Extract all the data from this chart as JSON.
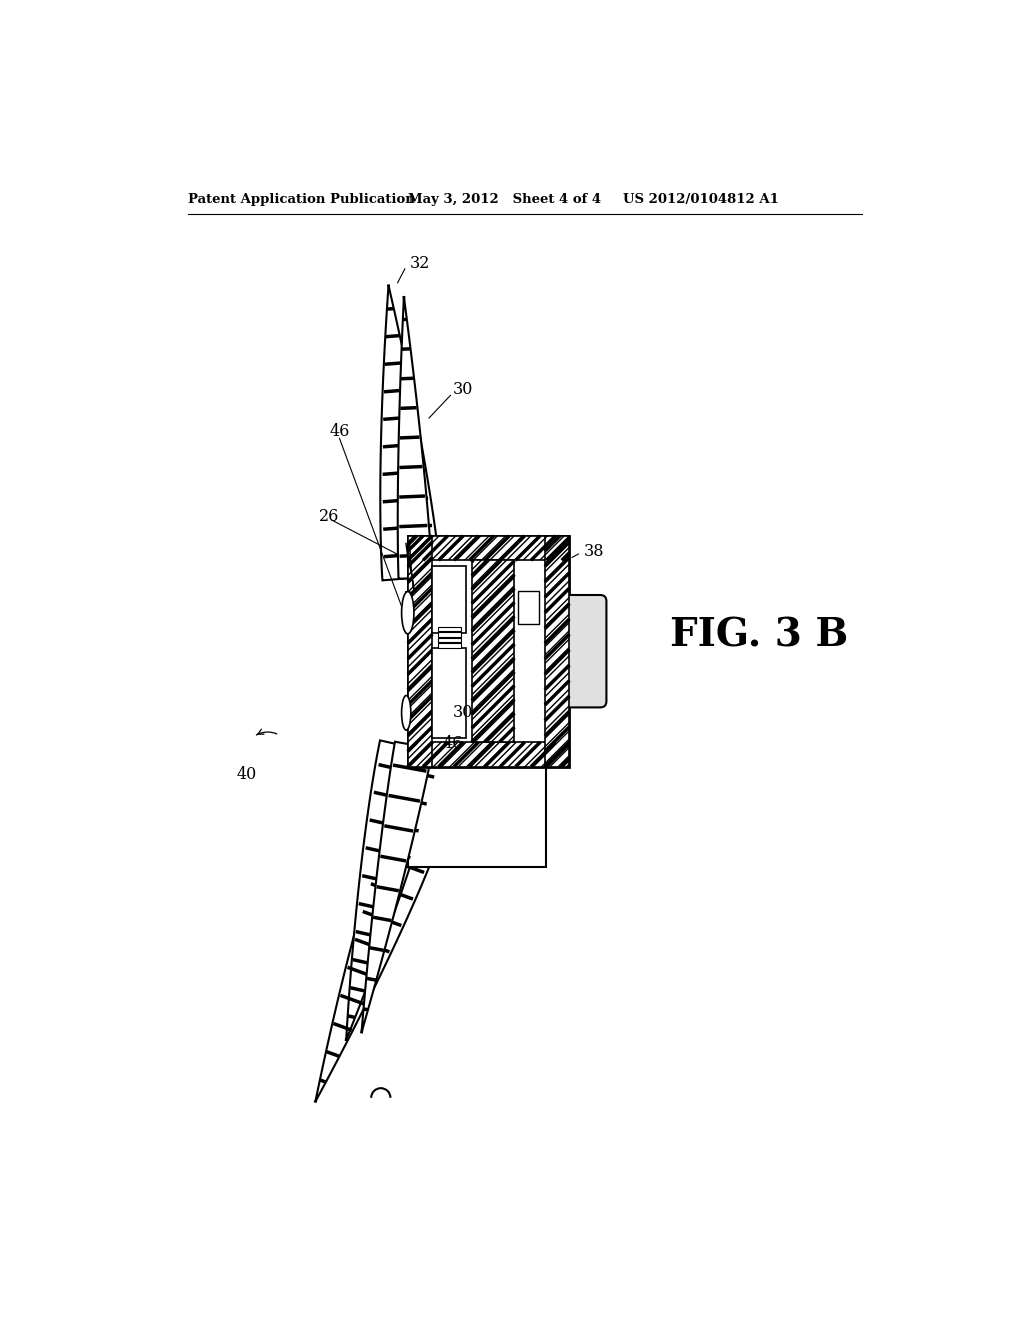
{
  "bg_color": "#ffffff",
  "header_left": "Patent Application Publication",
  "header_mid": "May 3, 2012   Sheet 4 of 4",
  "header_right": "US 2012/0104812 A1",
  "fig_label": "FIG. 3 B"
}
